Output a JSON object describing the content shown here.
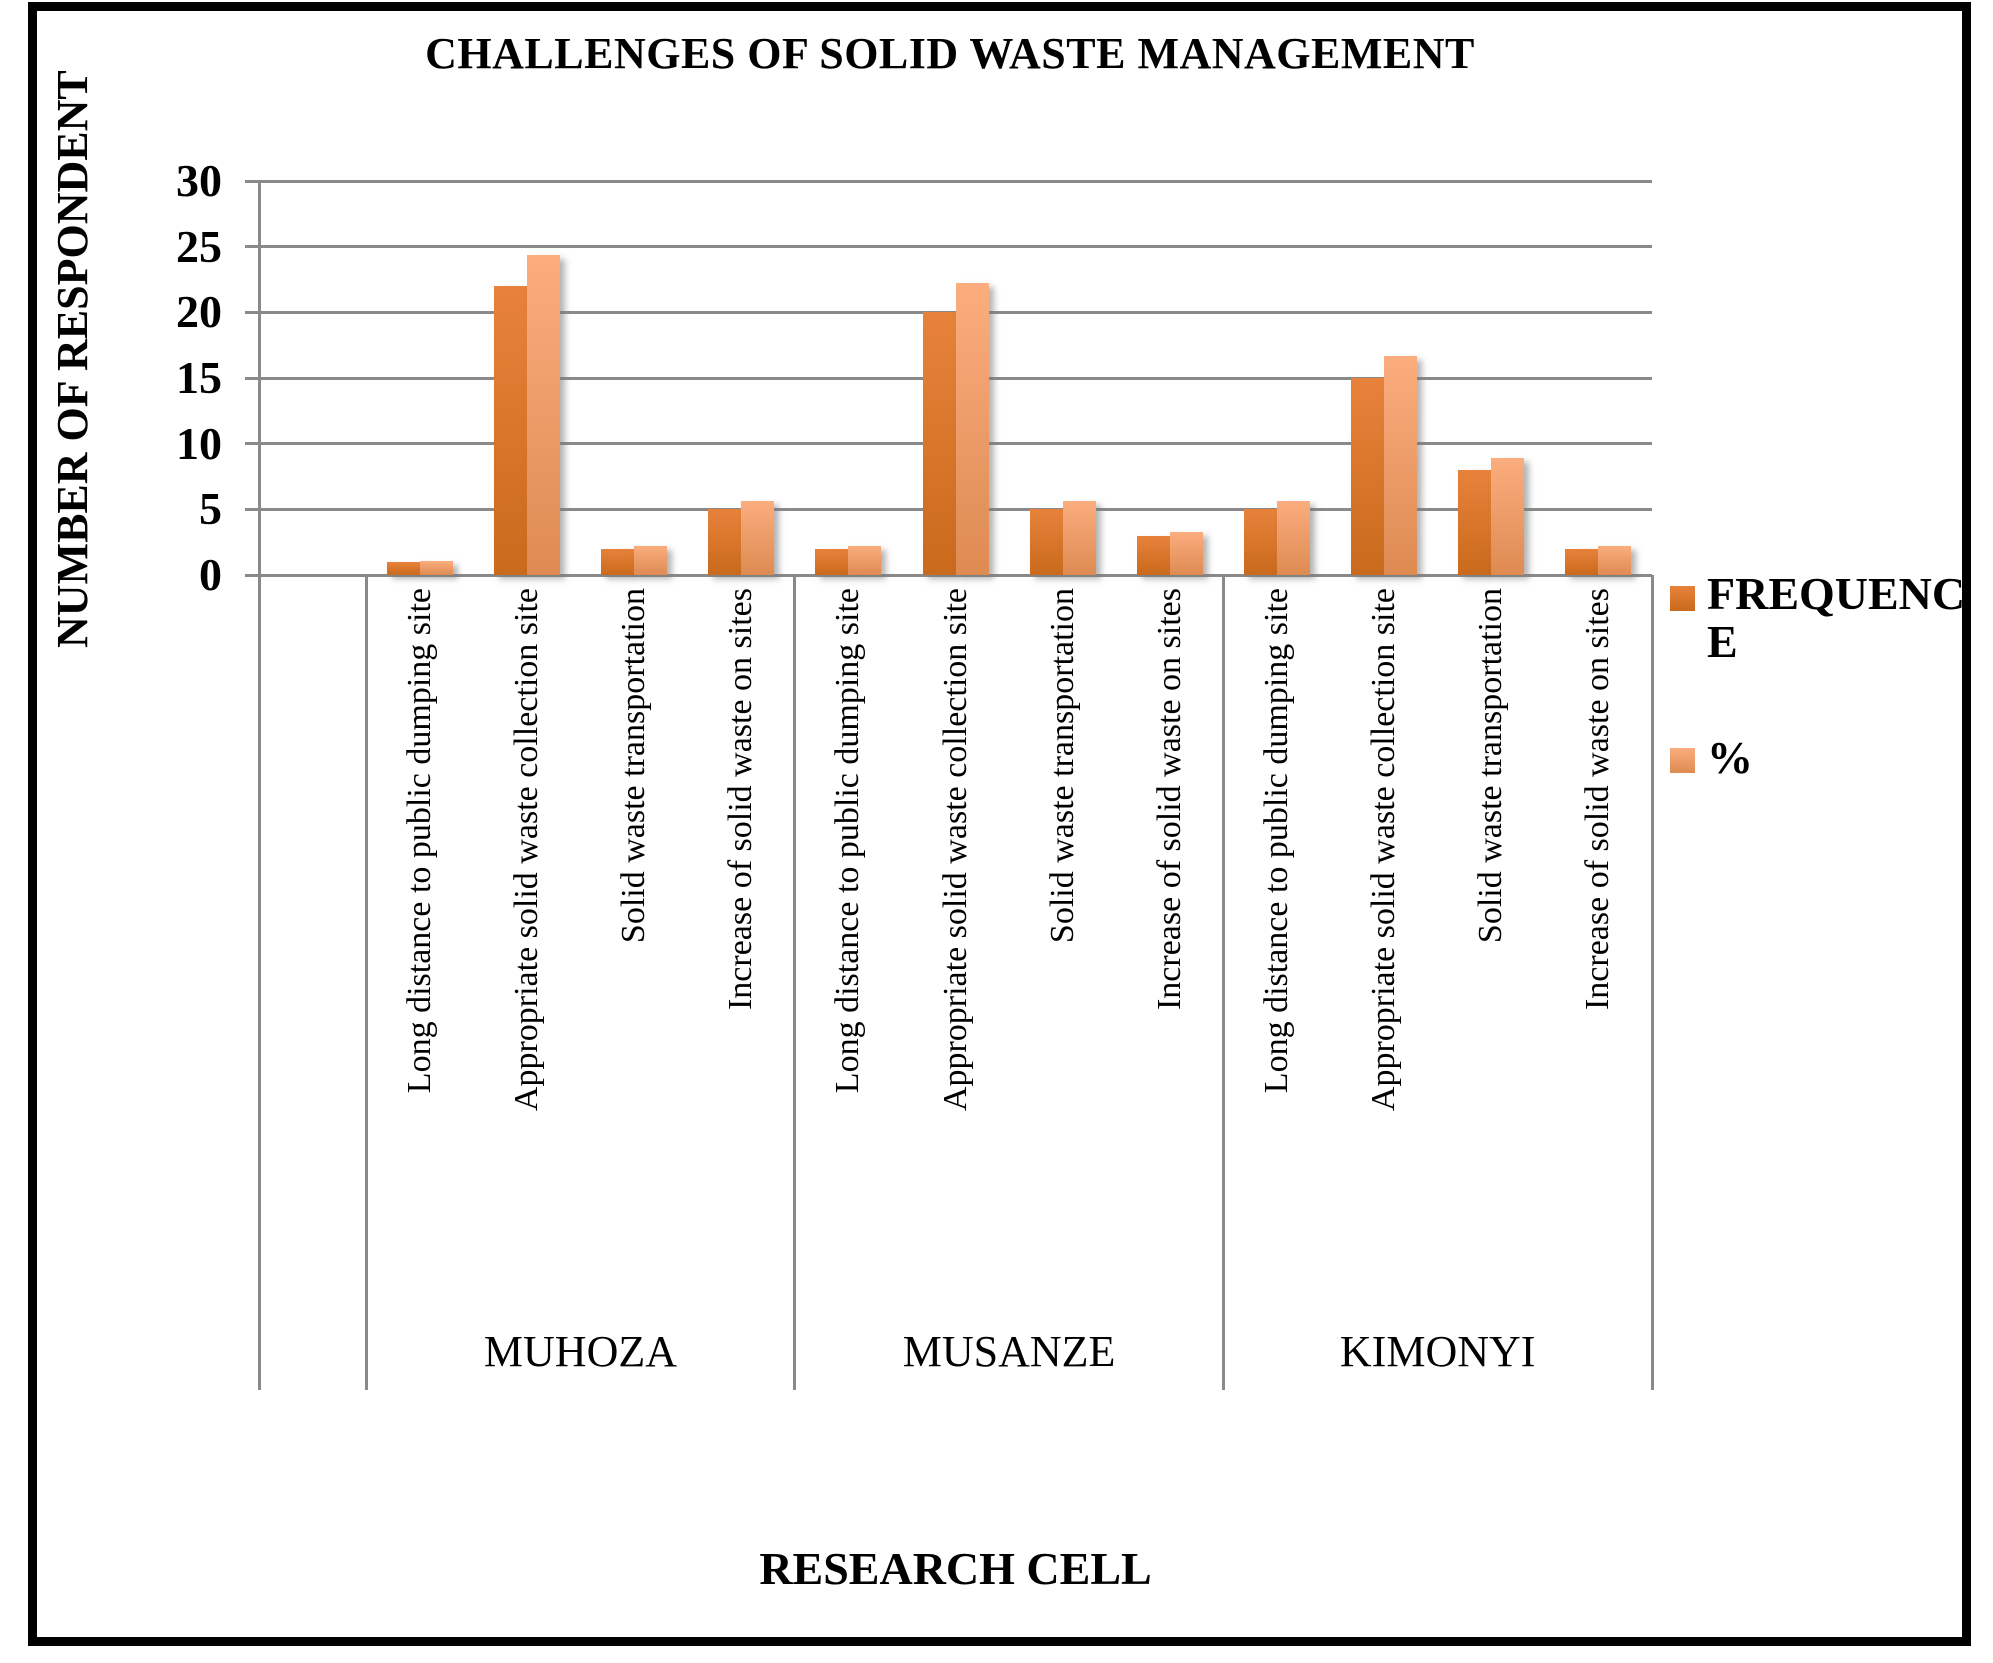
{
  "title": "CHALLENGES OF SOLID WASTE MANAGEMENT",
  "chart_data": {
    "type": "bar",
    "title": "CHALLENGES OF SOLID WASTE MANAGEMENT",
    "xlabel": "RESEARCH CELL",
    "ylabel": "NUMBER OF RESPONDENT",
    "ylim": [
      0,
      30
    ],
    "yticks": [
      0,
      5,
      10,
      15,
      20,
      25,
      30
    ],
    "grid": true,
    "grid_color": "#8A8A8A",
    "legend_position": "right",
    "groups": [
      "MUHOZA",
      "MUSANZE",
      "KIMONYI"
    ],
    "categories_per_group": [
      "Long distance to public dumping site",
      "Appropriate solid waste collection site",
      "Solid waste transportation",
      "Increase of solid waste on sites"
    ],
    "series": [
      {
        "name": "FREQUENCE",
        "color_top": "#E8823B",
        "color_bottom": "#C96A1C",
        "legend_color": "#DD752C",
        "values": [
          1,
          22,
          2,
          5,
          2,
          20,
          5,
          3,
          5,
          15,
          8,
          2
        ]
      },
      {
        "name": "%",
        "color_top": "#FBAD7E",
        "color_bottom": "#DE8B52",
        "legend_color": "#F2A575",
        "values": [
          1.1,
          24.4,
          2.2,
          5.6,
          2.2,
          22.2,
          5.6,
          3.3,
          5.6,
          16.7,
          8.9,
          2.2
        ]
      }
    ],
    "leading_empty_slot": true
  }
}
